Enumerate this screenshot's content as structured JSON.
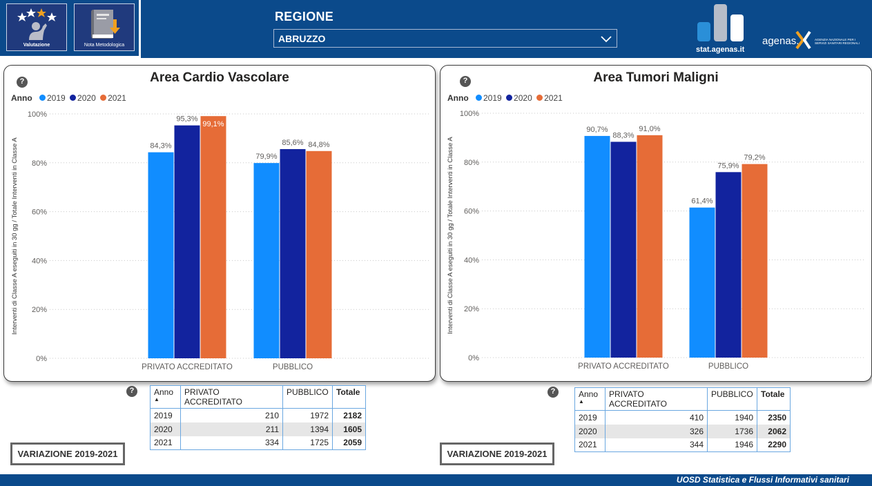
{
  "header": {
    "nav_buttons": [
      {
        "label": "Valutazione",
        "icon": "rating-stars-icon"
      },
      {
        "label": "Nota Metodologica",
        "icon": "book-download-icon"
      }
    ],
    "region_label": "REGIONE",
    "region_value": "ABRUZZO",
    "logo_stat": "stat.agenas.it",
    "logo_agenas": "agenas.",
    "logo_agenas_sub": "AGENZIA NAZIONALE PER I SERVIZI SANITARI REGIONALI"
  },
  "colors": {
    "y2019": "#118dff",
    "y2020": "#12239e",
    "y2021": "#e66c37",
    "brand": "#0b4a8b"
  },
  "legend": {
    "title": "Anno",
    "items": [
      "2019",
      "2020",
      "2021"
    ]
  },
  "chart_data": [
    {
      "type": "bar",
      "title": "Area Cardio Vascolare",
      "ylabel": "Interventi di Classe A eseguiti in 30 gg / Totale Interventi in Classe A",
      "ylim": [
        0,
        100
      ],
      "yticks": [
        "0%",
        "20%",
        "40%",
        "60%",
        "80%",
        "100%"
      ],
      "categories": [
        "PRIVATO ACCREDITATO",
        "PUBBLICO"
      ],
      "series": [
        {
          "name": "2019",
          "values": [
            84.3,
            79.9
          ],
          "labels": [
            "84,3%",
            "79,9%"
          ]
        },
        {
          "name": "2020",
          "values": [
            95.3,
            85.6
          ],
          "labels": [
            "95,3%",
            "85,6%"
          ]
        },
        {
          "name": "2021",
          "values": [
            99.1,
            84.8
          ],
          "labels": [
            "99,1%",
            "84,8%"
          ]
        }
      ],
      "legend_position": "top-left"
    },
    {
      "type": "bar",
      "title": "Area Tumori Maligni",
      "ylabel": "Interventi di Classe A eseguiti in 30 gg / Totale Interventi in Classe A",
      "ylim": [
        0,
        100
      ],
      "yticks": [
        "0%",
        "20%",
        "40%",
        "60%",
        "80%",
        "100%"
      ],
      "categories": [
        "PRIVATO ACCREDITATO",
        "PUBBLICO"
      ],
      "series": [
        {
          "name": "2019",
          "values": [
            90.7,
            61.4
          ],
          "labels": [
            "90,7%",
            "61,4%"
          ]
        },
        {
          "name": "2020",
          "values": [
            88.3,
            75.9
          ],
          "labels": [
            "88,3%",
            "75,9%"
          ]
        },
        {
          "name": "2021",
          "values": [
            91.0,
            79.2
          ],
          "labels": [
            "91,0%",
            "79,2%"
          ]
        }
      ],
      "legend_position": "top-left"
    }
  ],
  "tables": [
    {
      "columns": [
        "Anno",
        "PRIVATO ACCREDITATO",
        "PUBBLICO",
        "Totale"
      ],
      "rows": [
        [
          "2019",
          "210",
          "1972",
          "2182"
        ],
        [
          "2020",
          "211",
          "1394",
          "1605"
        ],
        [
          "2021",
          "334",
          "1725",
          "2059"
        ]
      ]
    },
    {
      "columns": [
        "Anno",
        "PRIVATO ACCREDITATO",
        "PUBBLICO",
        "Totale"
      ],
      "rows": [
        [
          "2019",
          "410",
          "1940",
          "2350"
        ],
        [
          "2020",
          "326",
          "1736",
          "2062"
        ],
        [
          "2021",
          "344",
          "1946",
          "2290"
        ]
      ]
    }
  ],
  "variation_button_label": "VARIAZIONE 2019-2021",
  "footer_text": "UOSD Statistica e Flussi Informativi sanitari"
}
